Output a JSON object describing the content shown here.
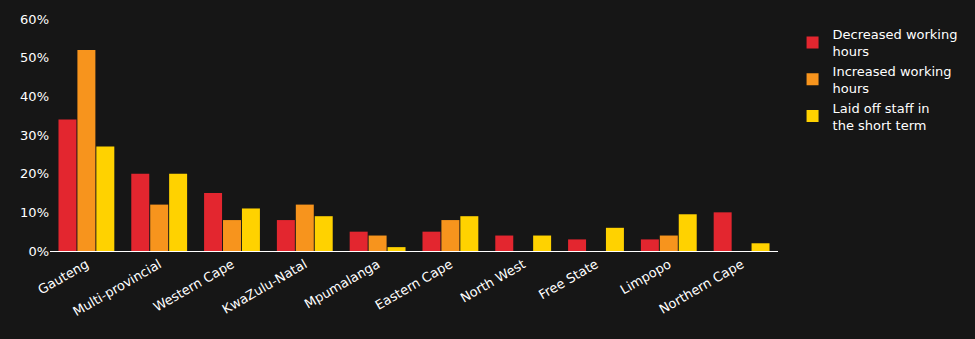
{
  "chart_data": {
    "type": "bar",
    "categories": [
      "Gauteng",
      "Multi-provincial",
      "Western Cape",
      "KwaZulu-Natal",
      "Mpumalanga",
      "Eastern Cape",
      "North West",
      "Free State",
      "Limpopo",
      "Northern Cape"
    ],
    "series": [
      {
        "name": "Decreased working hours",
        "color": "#e3262f",
        "values": [
          34,
          20,
          15,
          8,
          5,
          5,
          4,
          3,
          3,
          10
        ]
      },
      {
        "name": "Increased working hours",
        "color": "#f7941d",
        "values": [
          52,
          12,
          8,
          12,
          4,
          8,
          0,
          0,
          4,
          0
        ]
      },
      {
        "name": "Laid off staff in the short term",
        "color": "#ffd200",
        "values": [
          27,
          20,
          11,
          9,
          1,
          9,
          4,
          6,
          9.5,
          2
        ]
      }
    ],
    "ylim": [
      0,
      60
    ],
    "yticks": [
      {
        "value": 0,
        "label": "0%"
      },
      {
        "value": 10,
        "label": "10%"
      },
      {
        "value": 20,
        "label": "20%"
      },
      {
        "value": 30,
        "label": "30%"
      },
      {
        "value": 40,
        "label": "40%"
      },
      {
        "value": 50,
        "label": "50%"
      },
      {
        "value": 60,
        "label": "60%"
      }
    ],
    "grid": false,
    "legend": "right"
  }
}
